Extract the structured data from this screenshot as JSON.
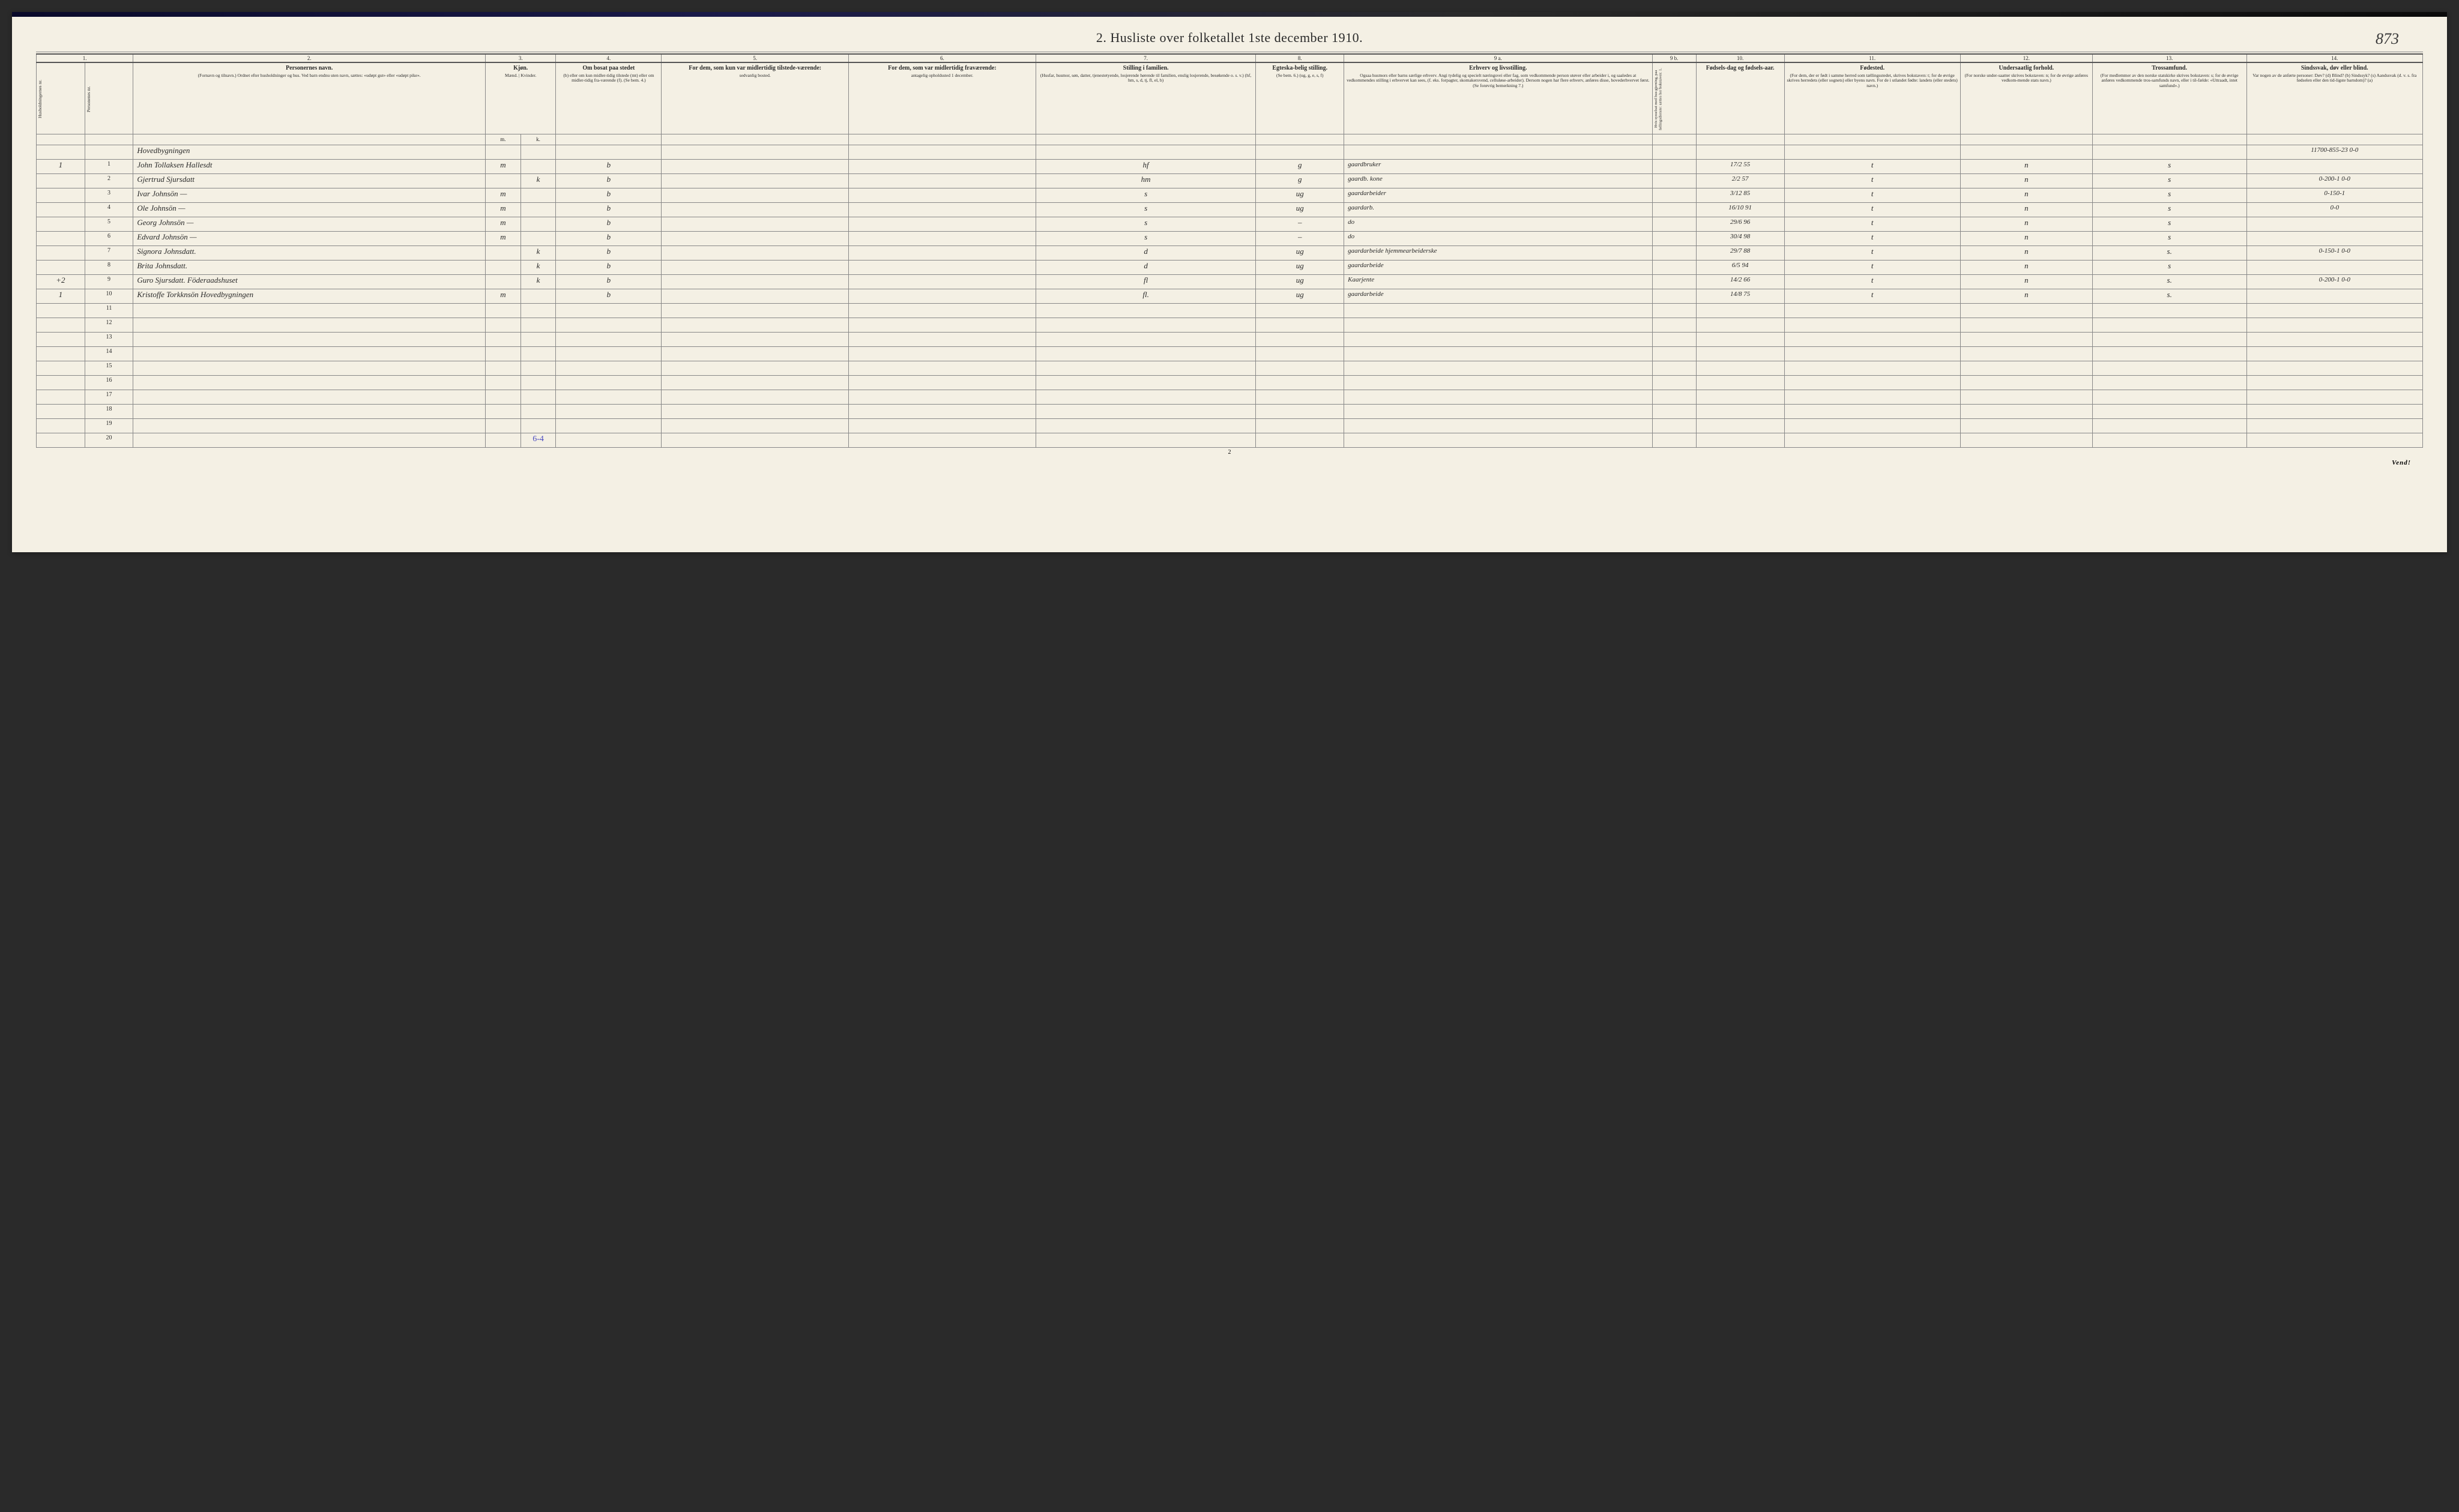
{
  "title": "2.  Husliste over folketallet 1ste december 1910.",
  "page_num_script": "873",
  "bottom_page_num": "2",
  "footer_note": "Vend!",
  "tally": "6-4",
  "col_numbers": [
    "1.",
    "",
    "2.",
    "3.",
    "",
    "4.",
    "5.",
    "6.",
    "7.",
    "8.",
    "9 a.",
    "9 b.",
    "10.",
    "11.",
    "12.",
    "13.",
    "14."
  ],
  "headers": {
    "c1": {
      "label": "Husholdningernes nr.",
      "sub": ""
    },
    "c1b": {
      "label": "Personenes nr.",
      "sub": ""
    },
    "c2": {
      "label": "Personernes navn.",
      "sub": "(Fornavn og tilnavn.) Ordnet efter husholdninger og hus. Ved barn endnu uten navn, sættes: «udøpt gut» eller «udøpt pike»."
    },
    "c3": {
      "label": "Kjøn.",
      "sub": "Mænd. | Kvinder."
    },
    "c3s": {
      "m": "m.",
      "k": "k."
    },
    "c4": {
      "label": "Om bosat paa stedet",
      "sub": "(b) eller om kun midler-tidig tilstede (mt) eller om midler-tidig fra-værende (f). (Se bem. 4.)"
    },
    "c5": {
      "label": "For dem, som kun var midlertidig tilstede-værende:",
      "sub": "sedvanlig bosted."
    },
    "c6": {
      "label": "For dem, som var midlertidig fraværende:",
      "sub": "antagelig opholdssted 1 december."
    },
    "c7": {
      "label": "Stilling i familien.",
      "sub": "(Husfar, husmor, søn, datter, tjenestetyende, losjerende hørende til familien, enslig losjerende, besøkende o. s. v.) (hf, hm, s, d, tj, fl, el, b)"
    },
    "c8": {
      "label": "Egteska-belig stilling.",
      "sub": "(Se bem. 6.) (ug, g, e, s, f)"
    },
    "c9a": {
      "label": "Erhverv og livsstilling.",
      "sub": "Ogsaa husmors eller barns særlige erhverv. Angi tydelig og specielt næringsvei eller fag, som vedkommende person utøver eller arbeider i, og saaledes at vedkommendes stilling i erhvervet kan sees, (f. eks. forpagter, skomakersvend, celluløse-arbeider). Dersom nogen har flere erhverv, anføres disse, hovederhvervet først. (Se forøvrig bemerkning 7.)"
    },
    "c9b": {
      "label": "",
      "sub": "Hvis sysselsat med hus-gjerning, paa føllingsdienste: sættes her bokstaven: 1."
    },
    "c10": {
      "label": "Fødsels-dag og fødsels-aar.",
      "sub": ""
    },
    "c11": {
      "label": "Fødested.",
      "sub": "(For dem, der er født i samme herred som tællingsstedet, skrives bokstaven: t; for de øvrige skrives herredets (eller sognets) eller byens navn. For de i utlandet fødte: landets (eller stedets) navn.)"
    },
    "c12": {
      "label": "Undersaatlig forhold.",
      "sub": "(For norske under-saatter skrives bokstaven: n; for de øvrige anføres vedkom-mende stats navn.)"
    },
    "c13": {
      "label": "Trossamfund.",
      "sub": "(For medlemmer av den norske statskirke skrives bokstaven: s; for de øvrige anføres vedkommende tros-samfunds navn, eller i til-fælde: «Uttraadt, intet samfund».)"
    },
    "c14": {
      "label": "Sindssvak, døv eller blind.",
      "sub": "Var nogen av de anførte personer: Døv? (d) Blind? (b) Sindssyk? (s) Aandssvak (d. v. s. fra fødselen eller den tid-ligste barndom)? (a)"
    }
  },
  "header_row_label": "Hovedbygningen",
  "header_row_note": "11700-855-23  0-0",
  "rows": [
    {
      "hh": "1",
      "pn": "1",
      "name": "John Tollaksen Hallesdt",
      "m": "m",
      "k": "",
      "bosat": "b",
      "c5": "",
      "c6": "",
      "fam": "hf",
      "eg": "g",
      "erhverv": "gaardbruker",
      "c9b": "",
      "dob": "17/2 55",
      "fsted": "t",
      "und": "n",
      "tro": "s",
      "c14": ""
    },
    {
      "hh": "",
      "pn": "2",
      "name": "Gjertrud Sjursdatt",
      "m": "",
      "k": "k",
      "bosat": "b",
      "c5": "",
      "c6": "",
      "fam": "hm",
      "eg": "g",
      "erhverv": "gaardb. kone",
      "c9b": "",
      "dob": "2/2 57",
      "fsted": "t",
      "und": "n",
      "tro": "s",
      "c14": "0-200-1  0-0"
    },
    {
      "hh": "",
      "pn": "3",
      "name": "Ivar Johnsön —",
      "m": "m",
      "k": "",
      "bosat": "b",
      "c5": "",
      "c6": "",
      "fam": "s",
      "eg": "ug",
      "erhverv": "gaardarbeider",
      "c9b": "",
      "dob": "3/12 85",
      "fsted": "t",
      "und": "n",
      "tro": "s",
      "c14": "0-150-1"
    },
    {
      "hh": "",
      "pn": "4",
      "name": "Ole Johnsön —",
      "m": "m",
      "k": "",
      "bosat": "b",
      "c5": "",
      "c6": "",
      "fam": "s",
      "eg": "ug",
      "erhverv": "gaardarb.",
      "c9b": "",
      "dob": "16/10 91",
      "fsted": "t",
      "und": "n",
      "tro": "s",
      "c14": "0-0"
    },
    {
      "hh": "",
      "pn": "5",
      "name": "Georg Johnsön —",
      "m": "m",
      "k": "",
      "bosat": "b",
      "c5": "",
      "c6": "",
      "fam": "s",
      "eg": "–",
      "erhverv": "do",
      "c9b": "",
      "dob": "29/6 96",
      "fsted": "t",
      "und": "n",
      "tro": "s",
      "c14": ""
    },
    {
      "hh": "",
      "pn": "6",
      "name": "Edvard Johnsön —",
      "m": "m",
      "k": "",
      "bosat": "b",
      "c5": "",
      "c6": "",
      "fam": "s",
      "eg": "–",
      "erhverv": "do",
      "c9b": "",
      "dob": "30/4 98",
      "fsted": "t",
      "und": "n",
      "tro": "s",
      "c14": ""
    },
    {
      "hh": "",
      "pn": "7",
      "name": "Signora Johnsdatt.",
      "m": "",
      "k": "k",
      "bosat": "b",
      "c5": "",
      "c6": "",
      "fam": "d",
      "eg": "ug",
      "erhverv": "gaardarbeide hjemmearbeiderske",
      "c9b": "",
      "dob": "29/7 88",
      "fsted": "t",
      "und": "n",
      "tro": "s.",
      "c14": "0-150-1  0-0"
    },
    {
      "hh": "",
      "pn": "8",
      "name": "Brita Johnsdatt.",
      "m": "",
      "k": "k",
      "bosat": "b",
      "c5": "",
      "c6": "",
      "fam": "d",
      "eg": "ug",
      "erhverv": "gaardarbeide",
      "c9b": "",
      "dob": "6/5 94",
      "fsted": "t",
      "und": "n",
      "tro": "s",
      "c14": ""
    },
    {
      "hh": "+2",
      "pn": "9",
      "name": "Guro Sjursdatt. Föderaadshuset",
      "m": "",
      "k": "k",
      "bosat": "b",
      "c5": "",
      "c6": "",
      "fam": "fl",
      "eg": "ug",
      "erhverv": "Kaarjente",
      "c9b": "",
      "dob": "14/2 66",
      "fsted": "t",
      "und": "n",
      "tro": "s.",
      "c14": "0-200-1  0-0"
    },
    {
      "hh": "1",
      "pn": "10",
      "name": "Kristoffe Torkknsön Hovedbygningen",
      "m": "m",
      "k": "",
      "bosat": "b",
      "c5": "",
      "c6": "",
      "fam": "fl.",
      "eg": "ug",
      "erhverv": "gaardarbeide",
      "c9b": "",
      "dob": "14/8 75",
      "fsted": "t",
      "und": "n",
      "tro": "s.",
      "c14": ""
    }
  ],
  "empty_rows": [
    "11",
    "12",
    "13",
    "14",
    "15",
    "16",
    "17",
    "18",
    "19",
    "20"
  ]
}
